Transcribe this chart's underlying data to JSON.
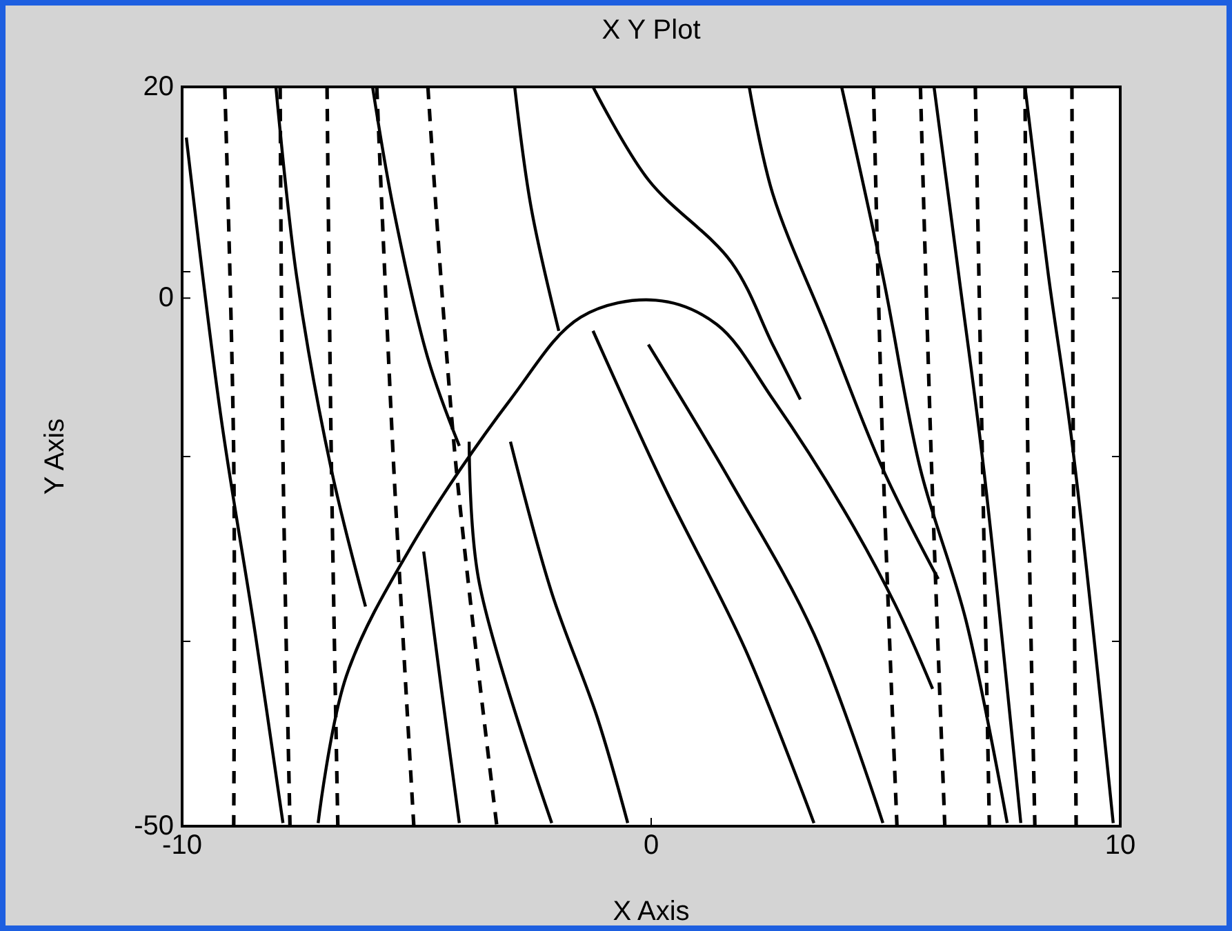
{
  "chart_data": {
    "type": "line",
    "title": "X Y Plot",
    "xlabel": "X Axis",
    "ylabel": "Y Axis",
    "xlim": [
      -10,
      10
    ],
    "ylim": [
      -50,
      20
    ],
    "xticks": [
      -10,
      0,
      10
    ],
    "yticks": [
      20,
      {
        "value": 2.5,
        "label": null
      },
      0,
      {
        "value": -15,
        "label": null
      },
      {
        "value": -32.5,
        "label": null
      },
      -50
    ],
    "series": [
      {
        "color": "#000000",
        "line_style": "solid",
        "x": [
          -7.1,
          -6.5,
          -5.1,
          -3,
          -1.5,
          0.1,
          1.4,
          2.6,
          4.1,
          5.2,
          6
        ],
        "values": [
          -49.7,
          -35.8,
          -23.4,
          -9.6,
          -1.8,
          -0.2,
          -2.5,
          -9.6,
          -20,
          -29,
          -37
        ]
      },
      {
        "color": "#000000",
        "line_style": "solid",
        "x": [
          -9.91,
          -9.18,
          -8.44,
          -7.85
        ],
        "values": [
          15.2,
          -11,
          -31.8,
          -49.7
        ]
      },
      {
        "color": "#000000",
        "line_style": "solid",
        "x": [
          -8,
          -7.56,
          -6.82,
          -6.09
        ],
        "values": [
          20,
          2.1,
          -16.2,
          -29.2
        ]
      },
      {
        "color": "#000000",
        "line_style": "solid",
        "x": [
          -5.94,
          -5.5,
          -4.76,
          -4.09
        ],
        "values": [
          20,
          8.6,
          -5.7,
          -14
        ]
      },
      {
        "color": "#000000",
        "line_style": "solid",
        "x": [
          -2.91,
          -2.56,
          -1.97
        ],
        "values": [
          20,
          8.6,
          -3.1
        ]
      },
      {
        "color": "#000000",
        "line_style": "solid",
        "x": [
          -1.24,
          -0.06,
          1.71,
          2.59,
          3.18
        ],
        "values": [
          20,
          11.2,
          3.4,
          -4.4,
          -9.6
        ]
      },
      {
        "color": "#000000",
        "line_style": "solid",
        "x": [
          2.09,
          2.59,
          3.76,
          4.94,
          6.12
        ],
        "values": [
          20,
          9.9,
          -3.1,
          -16.2,
          -26.6
        ]
      },
      {
        "color": "#000000",
        "line_style": "solid",
        "x": [
          4.06,
          4.94,
          5.74,
          6.71,
          7.59
        ],
        "values": [
          20,
          2.1,
          -16.2,
          -30.5,
          -49.7
        ]
      },
      {
        "color": "#000000",
        "line_style": "solid",
        "x": [
          6.03,
          6.56,
          7.09,
          7.88
        ],
        "values": [
          20,
          2.1,
          -16.2,
          -49.7
        ]
      },
      {
        "color": "#000000",
        "line_style": "solid",
        "x": [
          7.97,
          8.47,
          8.97,
          9.85
        ],
        "values": [
          20,
          2.1,
          -13.6,
          -49.7
        ]
      },
      {
        "color": "#000000",
        "line_style": "solid",
        "x": [
          -4.85,
          -4.47,
          -4.09
        ],
        "values": [
          -24,
          -37.1,
          -49.7
        ]
      },
      {
        "color": "#000000",
        "line_style": "solid",
        "x": [
          -3.88,
          -3.68,
          -2.12
        ],
        "values": [
          -13.6,
          -26.6,
          -49.7
        ]
      },
      {
        "color": "#000000",
        "line_style": "solid",
        "x": [
          -3,
          -2.12,
          -1.15,
          -0.5
        ],
        "values": [
          -13.6,
          -27.9,
          -39.7,
          -49.7
        ]
      },
      {
        "color": "#000000",
        "line_style": "solid",
        "x": [
          -1.24,
          0.24,
          2,
          3.47
        ],
        "values": [
          -3.1,
          -17.5,
          -33.2,
          -49.7
        ]
      },
      {
        "color": "#000000",
        "line_style": "solid",
        "x": [
          -0.06,
          1.71,
          3.47,
          4.94
        ],
        "values": [
          -4.4,
          -17.5,
          -31.8,
          -49.7
        ]
      },
      {
        "color": "#000000",
        "line_style": "dashed",
        "x": [
          -9.09,
          -8.9,
          -8.9
        ],
        "values": [
          20,
          -15,
          -50
        ]
      },
      {
        "color": "#000000",
        "line_style": "dashed",
        "x": [
          -7.91,
          -7.85,
          -7.7
        ],
        "values": [
          20,
          -15,
          -50
        ]
      },
      {
        "color": "#000000",
        "line_style": "dashed",
        "x": [
          -6.91,
          -6.82,
          -6.68
        ],
        "values": [
          20,
          -15,
          -50
        ]
      },
      {
        "color": "#000000",
        "line_style": "dashed",
        "x": [
          -5.85,
          -5.5,
          -5.06
        ],
        "values": [
          20,
          -15,
          -50
        ]
      },
      {
        "color": "#000000",
        "line_style": "dashed",
        "x": [
          -4.76,
          -4.18,
          -3.29
        ],
        "values": [
          20,
          -15,
          -50
        ]
      },
      {
        "color": "#000000",
        "line_style": "dashed",
        "x": [
          4.74,
          4.94,
          5.24
        ],
        "values": [
          20,
          -15,
          -50
        ]
      },
      {
        "color": "#000000",
        "line_style": "dashed",
        "x": [
          5.74,
          5.97,
          6.26
        ],
        "values": [
          20,
          -15,
          -50
        ]
      },
      {
        "color": "#000000",
        "line_style": "dashed",
        "x": [
          6.91,
          7.06,
          7.21
        ],
        "values": [
          20,
          -15,
          -50
        ]
      },
      {
        "color": "#000000",
        "line_style": "dashed",
        "x": [
          7.97,
          8.03,
          8.18
        ],
        "values": [
          20,
          -15,
          -50
        ]
      },
      {
        "color": "#000000",
        "line_style": "dashed",
        "x": [
          8.97,
          9,
          9.06
        ],
        "values": [
          20,
          -15,
          -50
        ]
      }
    ]
  }
}
